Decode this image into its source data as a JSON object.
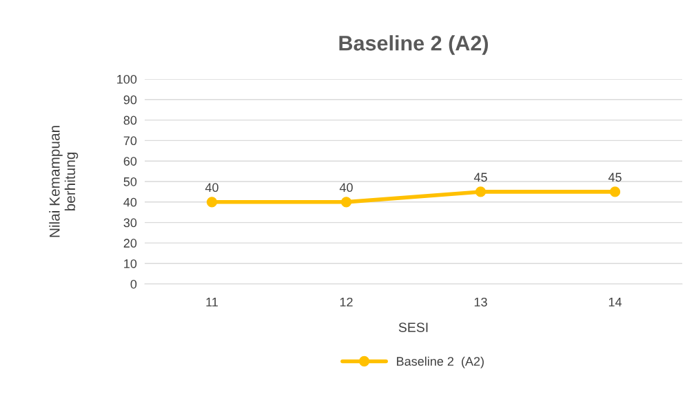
{
  "chart_data": {
    "type": "line",
    "title": "Baseline 2 (A2)",
    "xlabel": "SESI",
    "ylabel": "Nilai Kemampuan\nberhitung",
    "categories": [
      "11",
      "12",
      "13",
      "14"
    ],
    "series": [
      {
        "name": "Baseline 2  (A2)",
        "color": "#ffc000",
        "values": [
          40,
          40,
          45,
          45
        ]
      }
    ],
    "ylim": [
      0,
      100
    ],
    "yticks": [
      0,
      10,
      20,
      30,
      40,
      50,
      60,
      70,
      80,
      90,
      100
    ],
    "grid": "y",
    "legend": "bottom",
    "marker": "circle",
    "line_style": "solid",
    "data_labels": true
  }
}
